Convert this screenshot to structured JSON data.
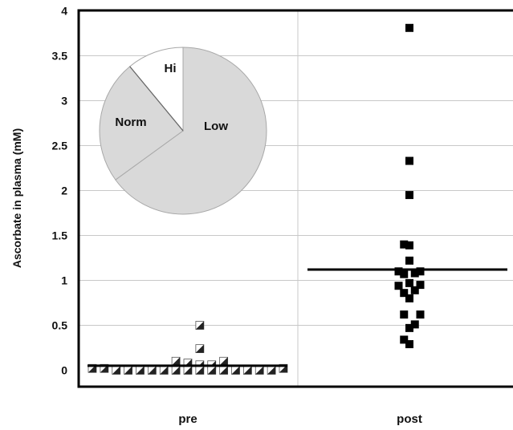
{
  "chart_data": {
    "type": "scatter",
    "ylabel": "Ascorbate in plasma (mM)",
    "ylim": [
      -0.2,
      4
    ],
    "yticks": [
      "0",
      "0.5",
      "1",
      "1.5",
      "2",
      "2.5",
      "3",
      "3.5",
      "4"
    ],
    "categories": [
      "pre",
      "post"
    ],
    "grid": true,
    "series": [
      {
        "category": "pre",
        "marker": "half-filled-square",
        "mean": 0.05,
        "points": [
          {
            "x": -1.0,
            "y": 0.02
          },
          {
            "x": -0.875,
            "y": 0.02
          },
          {
            "x": -0.75,
            "y": 0.0
          },
          {
            "x": -0.625,
            "y": 0.0
          },
          {
            "x": -0.5,
            "y": 0.0
          },
          {
            "x": -0.375,
            "y": 0.0
          },
          {
            "x": -0.25,
            "y": 0.0
          },
          {
            "x": -0.125,
            "y": 0.1
          },
          {
            "x": -0.125,
            "y": 0.0
          },
          {
            "x": 0.0,
            "y": 0.08
          },
          {
            "x": 0.0,
            "y": 0.0
          },
          {
            "x": 0.125,
            "y": 0.5
          },
          {
            "x": 0.125,
            "y": 0.24
          },
          {
            "x": 0.125,
            "y": 0.06
          },
          {
            "x": 0.125,
            "y": 0.0
          },
          {
            "x": 0.25,
            "y": 0.06
          },
          {
            "x": 0.25,
            "y": 0.0
          },
          {
            "x": 0.375,
            "y": 0.1
          },
          {
            "x": 0.375,
            "y": 0.0
          },
          {
            "x": 0.5,
            "y": 0.0
          },
          {
            "x": 0.625,
            "y": 0.0
          },
          {
            "x": 0.75,
            "y": 0.0
          },
          {
            "x": 0.875,
            "y": 0.0
          },
          {
            "x": 1.0,
            "y": 0.02
          }
        ]
      },
      {
        "category": "post",
        "marker": "filled-square",
        "mean": 1.12,
        "points": [
          {
            "x": 0.0,
            "y": 3.81
          },
          {
            "x": 0.0,
            "y": 2.33
          },
          {
            "x": 0.0,
            "y": 1.95
          },
          {
            "x": -0.25,
            "y": 1.4
          },
          {
            "x": 0.0,
            "y": 1.39
          },
          {
            "x": 0.0,
            "y": 1.22
          },
          {
            "x": -0.5,
            "y": 1.1
          },
          {
            "x": -0.25,
            "y": 1.07
          },
          {
            "x": 0.25,
            "y": 1.08
          },
          {
            "x": 0.5,
            "y": 1.1
          },
          {
            "x": -0.5,
            "y": 0.94
          },
          {
            "x": 0.0,
            "y": 0.97
          },
          {
            "x": 0.5,
            "y": 0.95
          },
          {
            "x": -0.25,
            "y": 0.86
          },
          {
            "x": 0.25,
            "y": 0.89
          },
          {
            "x": 0.0,
            "y": 0.8
          },
          {
            "x": -0.25,
            "y": 0.62
          },
          {
            "x": 0.5,
            "y": 0.62
          },
          {
            "x": 0.25,
            "y": 0.51
          },
          {
            "x": 0.0,
            "y": 0.47
          },
          {
            "x": -0.25,
            "y": 0.34
          },
          {
            "x": 0.0,
            "y": 0.29
          }
        ]
      }
    ],
    "inset_pie": {
      "slices": [
        {
          "label": "Low",
          "value": 0.65,
          "color": "#d9d9d9"
        },
        {
          "label": "Norm",
          "value": 0.24,
          "color": "#d9d9d9"
        },
        {
          "label": "Hi",
          "value": 0.11,
          "color": "#ffffff"
        }
      ]
    }
  }
}
